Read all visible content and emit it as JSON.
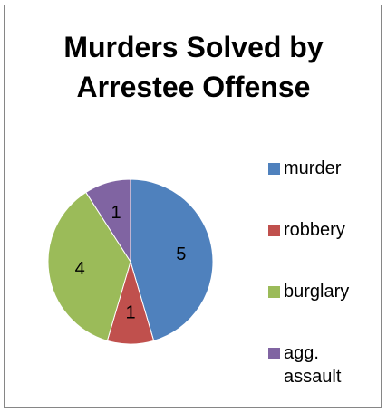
{
  "chart_data": {
    "type": "pie",
    "title_lines": [
      "Murders Solved by",
      "Arrestee Offense"
    ],
    "categories": [
      "murder",
      "robbery",
      "burglary",
      "agg. assault"
    ],
    "values": [
      5,
      1,
      4,
      1
    ],
    "data_labels": [
      "5",
      "1",
      "4",
      "1"
    ],
    "colors": [
      "#4F81BD",
      "#C0504D",
      "#9BBB59",
      "#8064A2"
    ],
    "legend_position": "right"
  }
}
